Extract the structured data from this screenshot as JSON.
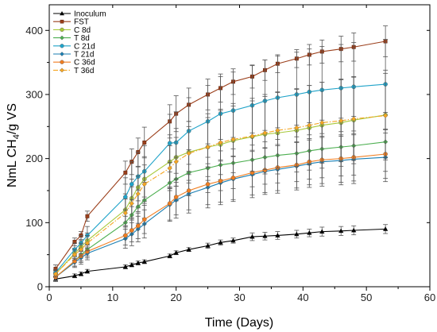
{
  "chart_data": {
    "type": "line",
    "xlabel": "Time (Days)",
    "ylabel_main": "NmL CH",
    "ylabel_sub": "4",
    "ylabel_tail": "/g VS",
    "xlim": [
      0,
      60
    ],
    "ylim": [
      0,
      440
    ],
    "xticks": [
      0,
      10,
      20,
      30,
      40,
      50,
      60
    ],
    "yticks": [
      0,
      100,
      200,
      300,
      400
    ],
    "grid": false,
    "legend_position": "top-left",
    "x": [
      1,
      4,
      5,
      6,
      12,
      13,
      14,
      15,
      19,
      20,
      22,
      25,
      27,
      29,
      32,
      34,
      36,
      39,
      41,
      43,
      46,
      48,
      53
    ],
    "series": [
      {
        "name": "Inoculum",
        "color": "#000000",
        "marker": "triangle",
        "dash": "solid",
        "values": [
          12,
          17,
          20,
          24,
          31,
          34,
          37,
          39,
          48,
          53,
          58,
          64,
          69,
          72,
          78,
          79,
          80,
          82,
          84,
          86,
          87,
          88,
          90
        ],
        "errors": [
          4,
          3,
          3,
          3,
          3,
          3,
          3,
          3,
          3,
          3,
          3,
          4,
          4,
          4,
          6,
          6,
          6,
          6,
          6,
          7,
          7,
          7,
          7
        ]
      },
      {
        "name": "FST",
        "color": "#9b3f1b",
        "marker": "square",
        "dash": "solid",
        "values": [
          28,
          70,
          80,
          110,
          178,
          195,
          210,
          225,
          258,
          270,
          284,
          300,
          310,
          320,
          328,
          338,
          348,
          356,
          362,
          367,
          371,
          374,
          383
        ],
        "errors": [
          6,
          6,
          6,
          8,
          18,
          20,
          22,
          24,
          26,
          28,
          26,
          24,
          22,
          20,
          18,
          16,
          14,
          14,
          16,
          18,
          20,
          22,
          24
        ]
      },
      {
        "name": "C 8d",
        "color": "#a8c93a",
        "marker": "circle",
        "dash": "solid",
        "values": [
          20,
          52,
          62,
          72,
          120,
          138,
          155,
          168,
          195,
          202,
          210,
          218,
          222,
          228,
          234,
          238,
          240,
          244,
          248,
          252,
          256,
          260,
          268
        ],
        "errors": [
          5,
          8,
          10,
          12,
          25,
          30,
          32,
          35,
          42,
          45,
          48,
          52,
          55,
          58,
          60,
          62,
          64,
          65,
          66,
          67,
          68,
          68,
          70
        ]
      },
      {
        "name": "T 8d",
        "color": "#4caf50",
        "marker": "diamond",
        "dash": "solid",
        "values": [
          15,
          40,
          50,
          58,
          100,
          112,
          125,
          135,
          162,
          168,
          178,
          185,
          190,
          193,
          198,
          202,
          205,
          208,
          212,
          215,
          218,
          220,
          226
        ],
        "errors": [
          5,
          8,
          10,
          10,
          20,
          24,
          26,
          28,
          32,
          34,
          36,
          38,
          40,
          40,
          42,
          42,
          43,
          44,
          44,
          45,
          45,
          46,
          46
        ]
      },
      {
        "name": "C 21d",
        "color": "#1fa3c9",
        "marker": "circle",
        "dash": "solid",
        "values": [
          22,
          58,
          68,
          80,
          140,
          160,
          172,
          180,
          224,
          225,
          243,
          258,
          270,
          275,
          283,
          290,
          295,
          300,
          304,
          307,
          310,
          312,
          316
        ],
        "errors": [
          5,
          10,
          12,
          14,
          30,
          35,
          38,
          40,
          45,
          48,
          52,
          56,
          58,
          60,
          62,
          64,
          65,
          66,
          67,
          68,
          68,
          69,
          70
        ]
      },
      {
        "name": "T 21d",
        "color": "#1a7eb2",
        "marker": "diamond",
        "dash": "solid",
        "values": [
          15,
          38,
          45,
          52,
          75,
          82,
          90,
          98,
          128,
          135,
          145,
          155,
          162,
          168,
          175,
          180,
          183,
          188,
          192,
          195,
          197,
          199,
          202
        ],
        "errors": [
          5,
          8,
          10,
          10,
          15,
          18,
          20,
          22,
          26,
          28,
          30,
          32,
          34,
          35,
          36,
          36,
          37,
          37,
          37,
          38,
          38,
          38,
          38
        ]
      },
      {
        "name": "C 36d",
        "color": "#f07d20",
        "marker": "circle",
        "dash": "solid",
        "values": [
          15,
          40,
          48,
          55,
          80,
          88,
          95,
          105,
          130,
          140,
          150,
          160,
          165,
          170,
          178,
          182,
          186,
          190,
          195,
          198,
          200,
          202,
          207
        ],
        "errors": [
          5,
          8,
          10,
          10,
          15,
          18,
          20,
          22,
          26,
          28,
          30,
          32,
          33,
          34,
          35,
          35,
          36,
          36,
          36,
          37,
          37,
          37,
          38
        ]
      },
      {
        "name": "T 36d",
        "color": "#f5a623",
        "marker": "diamond",
        "dash": "dashdot",
        "values": [
          20,
          50,
          58,
          68,
          115,
          130,
          145,
          160,
          185,
          195,
          208,
          218,
          225,
          230,
          235,
          240,
          244,
          248,
          252,
          256,
          259,
          262,
          267
        ],
        "errors": [
          5,
          8,
          10,
          12,
          22,
          26,
          28,
          30,
          35,
          38,
          42,
          46,
          50,
          52,
          55,
          57,
          59,
          60,
          62,
          63,
          64,
          65,
          66
        ]
      }
    ]
  }
}
